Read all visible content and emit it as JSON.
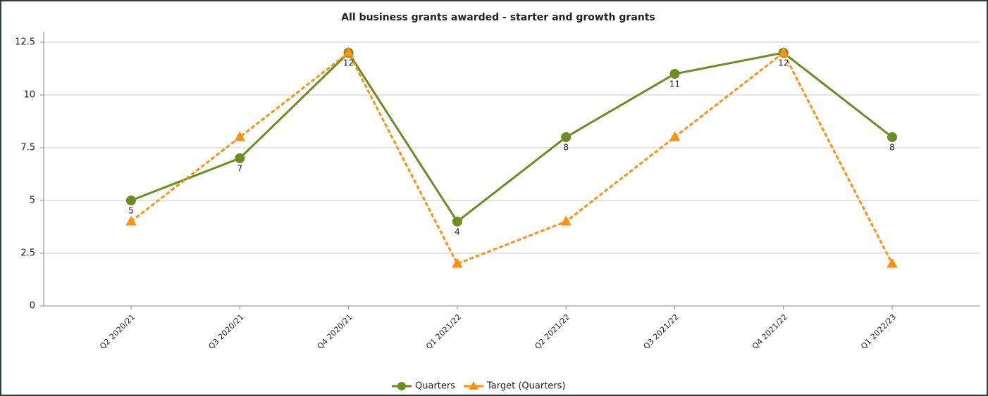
{
  "chart_data": {
    "type": "line",
    "title": "All business grants awarded - starter and growth grants",
    "categories": [
      "Q2 2020/21",
      "Q3 2020/21",
      "Q4 2020/21",
      "Q1 2021/22",
      "Q2 2021/22",
      "Q3 2021/22",
      "Q4 2021/22",
      "Q1 2022/23"
    ],
    "series": [
      {
        "name": "Quarters",
        "color": "#6b8e23",
        "marker": "circle",
        "dashed": false,
        "labels": true,
        "values": [
          5,
          7,
          12,
          4,
          8,
          11,
          12,
          8
        ]
      },
      {
        "name": "Target (Quarters)",
        "color": "#ff9010",
        "marker": "triangle",
        "dashed": true,
        "labels": false,
        "values": [
          4,
          8,
          12,
          2,
          4,
          8,
          12,
          2
        ]
      }
    ],
    "ylim": [
      0,
      13
    ],
    "yticks": [
      0,
      2.5,
      5,
      7.5,
      10,
      12.5
    ],
    "grid": true,
    "legend": "bottom"
  }
}
